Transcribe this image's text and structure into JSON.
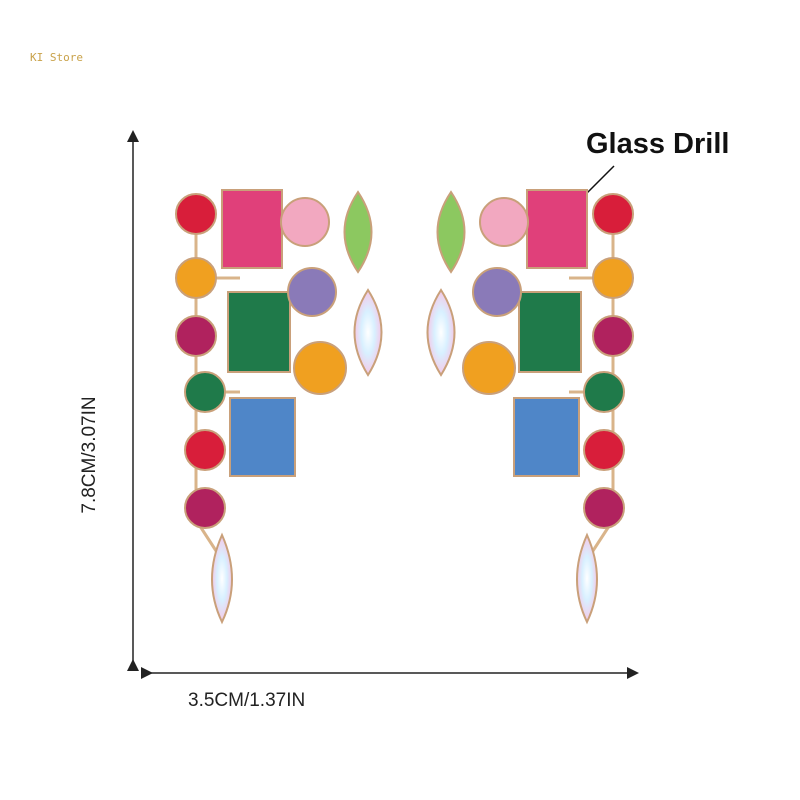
{
  "watermark": "KI Store",
  "callout": "Glass Drill",
  "dimensions": {
    "width": "3.5CM/1.37IN",
    "height": "7.8CM/3.07IN"
  },
  "colors": {
    "metal": "#d9b48a",
    "red": "#d81e3a",
    "orange": "#f0a020",
    "magenta": "#b0225e",
    "green": "#1f7a4a",
    "pink": "#e0407a",
    "blue": "#4f86c8",
    "purple": "#8a7ab8",
    "lightgreen": "#8cc860"
  }
}
